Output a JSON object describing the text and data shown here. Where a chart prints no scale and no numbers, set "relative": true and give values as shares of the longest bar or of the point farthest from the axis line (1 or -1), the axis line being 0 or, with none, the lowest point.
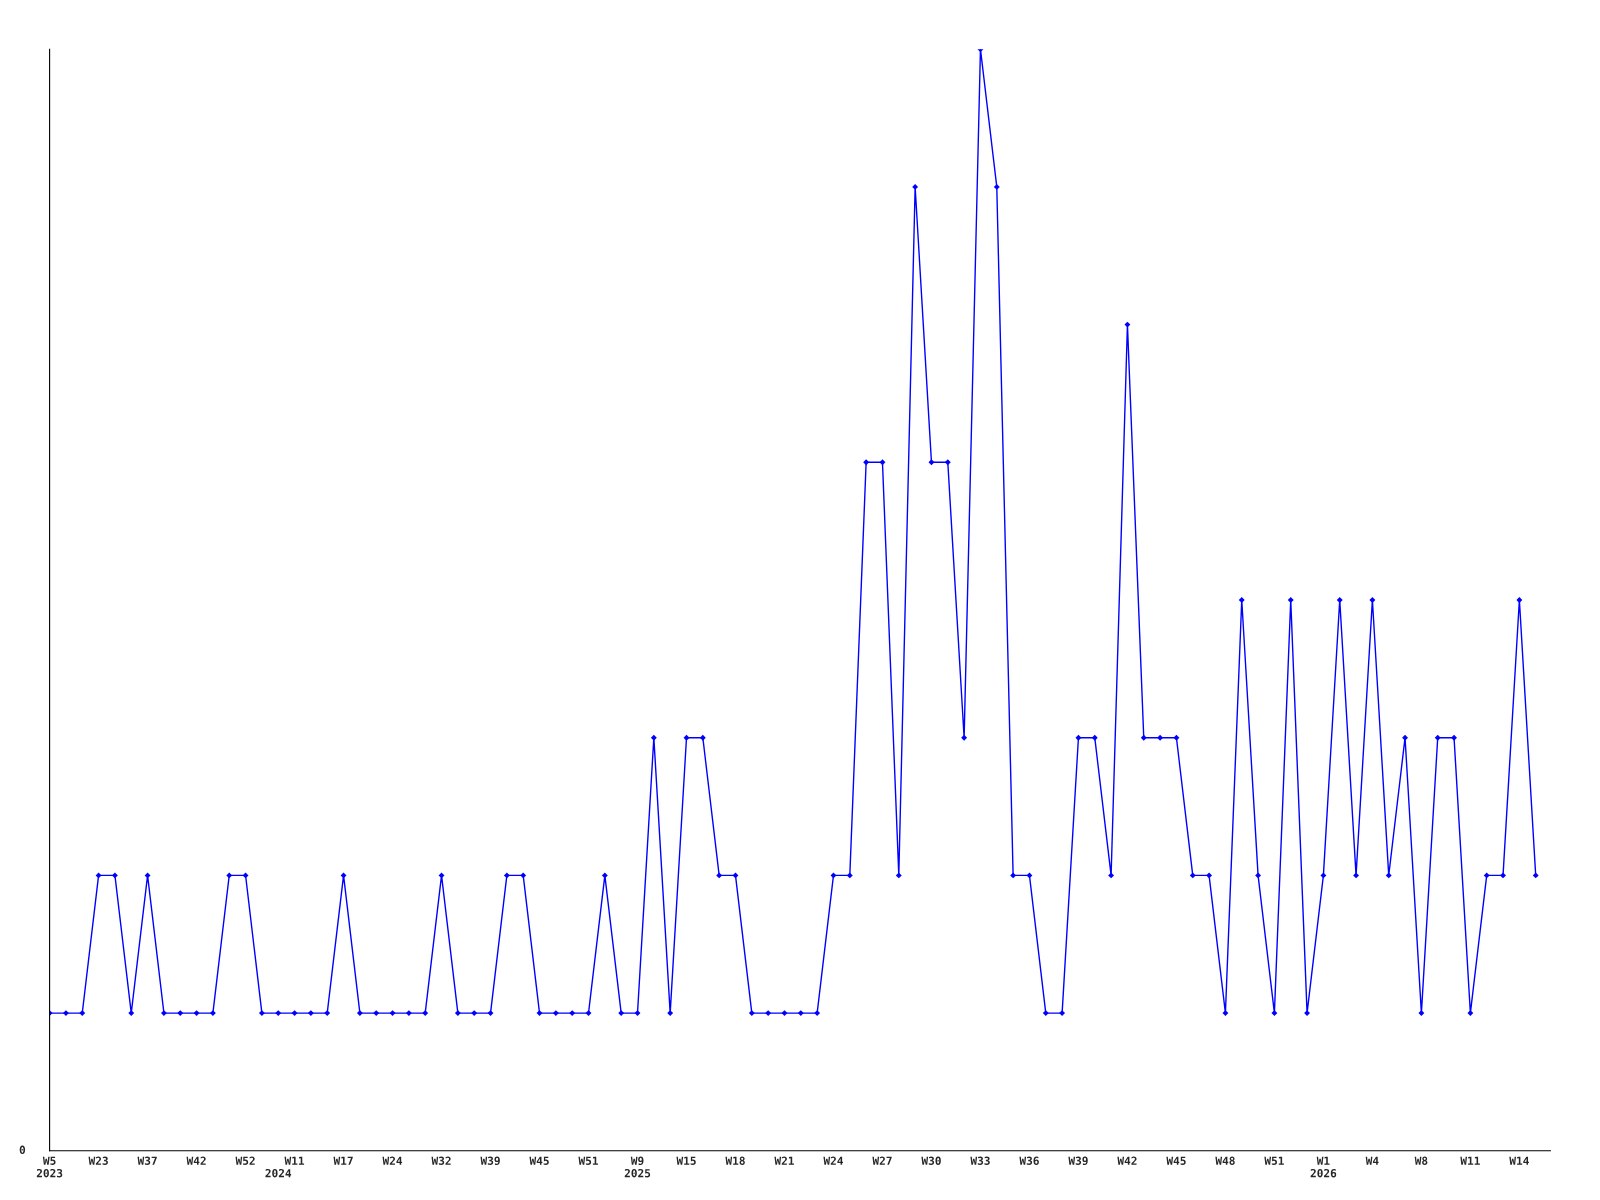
{
  "chart_data": {
    "type": "line",
    "relative": true,
    "marker": "diamond",
    "line_style": "solid",
    "grid": false,
    "categories": [
      "W5\n2023",
      null,
      null,
      "W23",
      null,
      null,
      "W37",
      null,
      null,
      "W42",
      null,
      null,
      "W52",
      null,
      "\n2024",
      "W11",
      null,
      null,
      "W17",
      null,
      null,
      "W24",
      null,
      null,
      "W32",
      null,
      null,
      "W39",
      null,
      null,
      "W45",
      null,
      null,
      "W51",
      null,
      null,
      "W9\n2025",
      null,
      null,
      "W15",
      null,
      null,
      "W18",
      null,
      null,
      "W21",
      null,
      null,
      "W24",
      null,
      null,
      "W27",
      null,
      null,
      "W30",
      null,
      null,
      "W33",
      null,
      null,
      "W36",
      null,
      null,
      "W39",
      null,
      null,
      "W42",
      null,
      null,
      "W45",
      null,
      null,
      "W48",
      null,
      null,
      "W51",
      null,
      null,
      "W1\n2026",
      null,
      null,
      "W4",
      null,
      null,
      "W8",
      null,
      null,
      "W11",
      null,
      null,
      "W14",
      null
    ],
    "series": [
      {
        "color": "#0000ff",
        "values": [
          0.125,
          0.125,
          0.125,
          0.25,
          0.25,
          0.125,
          0.25,
          0.125,
          0.125,
          0.125,
          0.125,
          0.25,
          0.25,
          0.125,
          0.125,
          0.125,
          0.125,
          0.125,
          0.25,
          0.125,
          0.125,
          0.125,
          0.125,
          0.125,
          0.25,
          0.125,
          0.125,
          0.125,
          0.25,
          0.25,
          0.125,
          0.125,
          0.125,
          0.125,
          0.25,
          0.125,
          0.125,
          0.375,
          0.125,
          0.375,
          0.375,
          0.25,
          0.25,
          0.125,
          0.125,
          0.125,
          0.125,
          0.125,
          0.25,
          0.25,
          0.625,
          0.625,
          0.25,
          0.875,
          0.625,
          0.625,
          0.375,
          1,
          0.875,
          0.25,
          0.25,
          0.125,
          0.125,
          0.375,
          0.375,
          0.25,
          0.75,
          0.375,
          0.375,
          0.375,
          0.25,
          0.25,
          0.125,
          0.5,
          0.25,
          0.125,
          0.5,
          0.125,
          0.25,
          0.5,
          0.25,
          0.5,
          0.25,
          0.375,
          0.125,
          0.375,
          0.375,
          0.125,
          0.25,
          0.25,
          0.5,
          0.25
        ]
      }
    ],
    "annotations": [
      "0"
    ]
  }
}
